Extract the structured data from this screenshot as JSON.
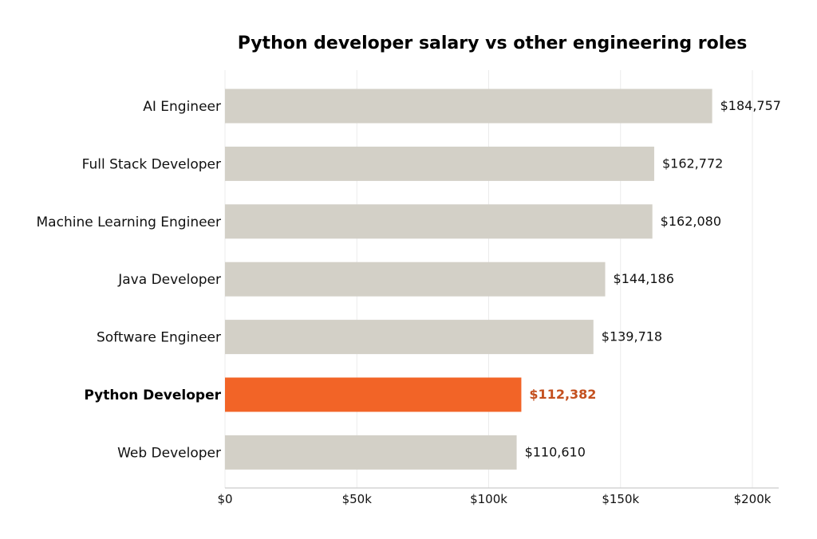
{
  "colors": {
    "bar": "#d3d0c7",
    "highlight_bar": "#f26427",
    "highlight_label": "#c4501f",
    "grid": "#ebebeb",
    "axis": "#cccccc"
  },
  "chart_data": {
    "type": "bar",
    "orientation": "horizontal",
    "title": "Python developer salary vs other engineering roles",
    "xlabel": "",
    "ylabel": "",
    "xlim": [
      0,
      210000
    ],
    "xticks": [
      0,
      50000,
      100000,
      150000,
      200000
    ],
    "xtick_labels": [
      "$0",
      "$50k",
      "$100k",
      "$150k",
      "$200k"
    ],
    "grid": "vertical",
    "categories": [
      "AI Engineer",
      "Full Stack Developer",
      "Machine Learning Engineer",
      "Java Developer",
      "Software Engineer",
      "Python Developer",
      "Web Developer"
    ],
    "values": [
      184757,
      162772,
      162080,
      144186,
      139718,
      112382,
      110610
    ],
    "value_labels": [
      "$184,757",
      "$162,772",
      "$162,080",
      "$144,186",
      "$139,718",
      "$112,382",
      "$110,610"
    ],
    "highlight": "Python Developer"
  }
}
